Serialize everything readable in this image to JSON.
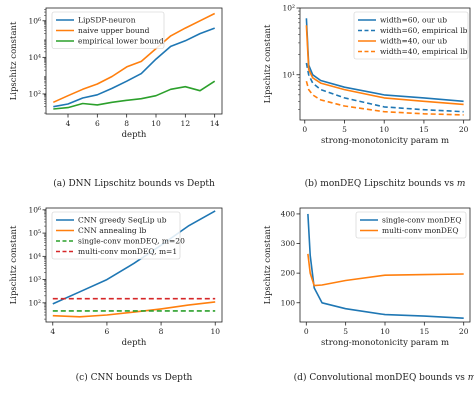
{
  "chart_data": [
    {
      "type": "line",
      "caption": "(a) DNN Lipschitz bounds vs Depth",
      "xlabel": "depth",
      "ylabel": "Lipschitz constant",
      "xscale": "linear",
      "yscale": "log",
      "xlim": [
        2.5,
        14.5
      ],
      "ylim": [
        8,
        5000000
      ],
      "xticks": [
        4,
        6,
        8,
        10,
        12,
        14
      ],
      "xtick_labels": [
        "4",
        "6",
        "8",
        "10",
        "12",
        "14"
      ],
      "yticks": [
        100,
        10000,
        1000000
      ],
      "ytick_labels": [
        "10²",
        "10⁴",
        "10⁶"
      ],
      "grid": false,
      "legend_position": "upper-left",
      "series": [
        {
          "name": "LipSDP-neuron",
          "color": "#1f77b4",
          "dash": "solid",
          "x": [
            3,
            4,
            5,
            6,
            7,
            8,
            9,
            10,
            11,
            12,
            13,
            14
          ],
          "y": [
            20,
            28,
            60,
            90,
            200,
            500,
            1300,
            8000,
            40000,
            80000,
            200000,
            400000
          ]
        },
        {
          "name": "naive upper bound",
          "color": "#ff7f0e",
          "dash": "solid",
          "x": [
            3,
            4,
            5,
            6,
            7,
            8,
            9,
            10,
            11,
            12,
            13,
            14
          ],
          "y": [
            35,
            80,
            180,
            350,
            900,
            3000,
            6000,
            30000,
            150000,
            400000,
            1000000,
            2500000
          ]
        },
        {
          "name": "empirical lower bound",
          "color": "#2ca02c",
          "dash": "solid",
          "x": [
            3,
            4,
            5,
            6,
            7,
            8,
            9,
            10,
            11,
            12,
            13,
            14
          ],
          "y": [
            15,
            18,
            30,
            25,
            35,
            45,
            55,
            80,
            180,
            250,
            150,
            500
          ]
        }
      ]
    },
    {
      "type": "line",
      "caption": "(b) monDEQ Lipschitz bounds vs m",
      "xlabel": "strong-monotonicity param m",
      "ylabel": "Lipschitz constant",
      "xscale": "linear",
      "yscale": "log",
      "xlim": [
        -0.6,
        20.8
      ],
      "ylim": [
        2.1,
        100
      ],
      "xticks": [
        0,
        5,
        10,
        15,
        20
      ],
      "xtick_labels": [
        "0",
        "5",
        "10",
        "15",
        "20"
      ],
      "yticks": [
        10,
        100
      ],
      "ytick_labels": [
        "10¹",
        "10²"
      ],
      "grid": false,
      "legend_position": "upper-right",
      "series": [
        {
          "name": "width=60, our ub",
          "color": "#1f77b4",
          "dash": "solid",
          "x": [
            0.2,
            0.5,
            1,
            2,
            5,
            10,
            15,
            20
          ],
          "y": [
            70,
            14,
            10,
            8.2,
            6.5,
            5,
            4.5,
            4
          ]
        },
        {
          "name": "width=60, empirical lb",
          "color": "#1f77b4",
          "dash": "dashed",
          "x": [
            0.2,
            0.5,
            1,
            2,
            5,
            10,
            15,
            20
          ],
          "y": [
            15,
            10,
            7.5,
            6,
            4.5,
            3.3,
            3,
            2.8
          ]
        },
        {
          "name": "width=40, our ub",
          "color": "#ff7f0e",
          "dash": "solid",
          "x": [
            0.2,
            0.5,
            1,
            2,
            5,
            10,
            15,
            20
          ],
          "y": [
            55,
            12,
            9,
            7.5,
            6,
            4.5,
            4,
            3.6
          ]
        },
        {
          "name": "width=40, empirical lb",
          "color": "#ff7f0e",
          "dash": "dashed",
          "x": [
            0.2,
            0.5,
            1,
            2,
            5,
            10,
            15,
            20
          ],
          "y": [
            8,
            6,
            5,
            4.2,
            3.4,
            2.8,
            2.6,
            2.5
          ]
        }
      ]
    },
    {
      "type": "line",
      "caption": "(c) CNN bounds vs Depth",
      "xlabel": "depth",
      "ylabel": "Lipschitz constant",
      "xscale": "linear",
      "yscale": "log",
      "xlim": [
        3.75,
        10.25
      ],
      "ylim": [
        15,
        1200000
      ],
      "xticks": [
        4,
        6,
        8,
        10
      ],
      "xtick_labels": [
        "4",
        "6",
        "8",
        "10"
      ],
      "yticks": [
        100,
        1000,
        10000,
        100000,
        1000000
      ],
      "ytick_labels": [
        "10²",
        "10³",
        "10⁴",
        "10⁵",
        "10⁶"
      ],
      "grid": false,
      "legend_position": "upper-left",
      "series": [
        {
          "name": "CNN greedy SeqLip ub",
          "color": "#1f77b4",
          "dash": "solid",
          "x": [
            4,
            5,
            6,
            7,
            8,
            9,
            10
          ],
          "y": [
            90,
            300,
            1000,
            5000,
            30000,
            200000,
            900000
          ]
        },
        {
          "name": "CNN annealing lb",
          "color": "#ff7f0e",
          "dash": "solid",
          "x": [
            4,
            5,
            6,
            7,
            8,
            9,
            10
          ],
          "y": [
            28,
            25,
            30,
            40,
            55,
            80,
            110
          ]
        },
        {
          "name": "single-conv monDEQ, m=20",
          "color": "#2ca02c",
          "dash": "dashed",
          "x": [
            4,
            10
          ],
          "y": [
            45,
            45
          ]
        },
        {
          "name": "multi-conv monDEQ, m=1",
          "color": "#d62728",
          "dash": "dashed",
          "x": [
            4,
            10
          ],
          "y": [
            150,
            150
          ]
        }
      ]
    },
    {
      "type": "line",
      "caption": "(d) Convolutional monDEQ bounds vs m",
      "xlabel": "strong-monotonicity param m",
      "ylabel": "Lipschitz constant",
      "xscale": "linear",
      "yscale": "linear",
      "xlim": [
        -0.8,
        20.8
      ],
      "ylim": [
        35,
        420
      ],
      "xticks": [
        0,
        5,
        10,
        15,
        20
      ],
      "xtick_labels": [
        "0",
        "5",
        "10",
        "15",
        "20"
      ],
      "yticks": [
        100,
        200,
        300,
        400
      ],
      "ytick_labels": [
        "100",
        "200",
        "300",
        "400"
      ],
      "grid": false,
      "legend_position": "upper-right",
      "series": [
        {
          "name": "single-conv monDEQ",
          "color": "#1f77b4",
          "dash": "solid",
          "x": [
            0.2,
            0.5,
            1,
            2,
            5,
            10,
            15,
            20
          ],
          "y": [
            400,
            260,
            150,
            100,
            80,
            60,
            55,
            48
          ]
        },
        {
          "name": "multi-conv monDEQ",
          "color": "#ff7f0e",
          "dash": "solid",
          "x": [
            0.2,
            0.5,
            1,
            2,
            5,
            10,
            15,
            20
          ],
          "y": [
            265,
            200,
            158,
            160,
            175,
            193,
            195,
            197
          ]
        }
      ]
    }
  ]
}
